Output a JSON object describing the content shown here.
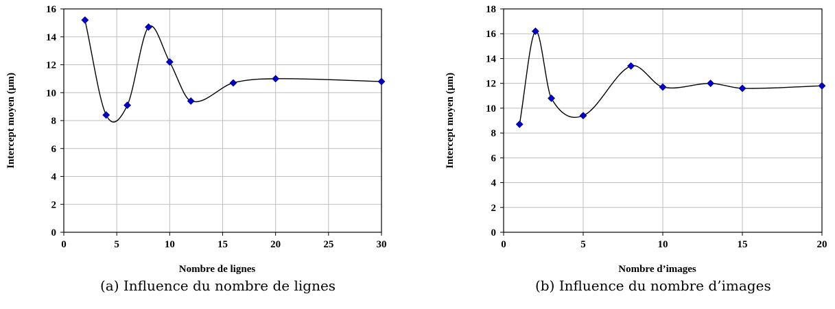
{
  "chart_data": [
    {
      "type": "scatter",
      "caption": "(a) Influence du nombre de lignes",
      "xlabel": "Nombre de lignes",
      "ylabel": "Intercept moyen (µm)",
      "xlim": [
        0,
        30
      ],
      "ylim": [
        0,
        16
      ],
      "xticks": [
        0,
        5,
        10,
        15,
        20,
        25,
        30
      ],
      "yticks": [
        0,
        2,
        4,
        6,
        8,
        10,
        12,
        14,
        16
      ],
      "grid": true,
      "smooth_curve": true,
      "marker": "diamond",
      "marker_color": "#0000c8",
      "x": [
        2,
        4,
        6,
        8,
        10,
        12,
        16,
        20,
        30
      ],
      "y": [
        15.2,
        8.4,
        9.1,
        14.7,
        12.2,
        9.4,
        10.7,
        11.0,
        10.8
      ]
    },
    {
      "type": "scatter",
      "caption": "(b) Influence du nombre d’images",
      "xlabel": "Nombre d’images",
      "ylabel": "Intercept moyen (µm)",
      "xlim": [
        0,
        20
      ],
      "ylim": [
        0,
        18
      ],
      "xticks": [
        0,
        5,
        10,
        15,
        20
      ],
      "yticks": [
        0,
        2,
        4,
        6,
        8,
        10,
        12,
        14,
        16,
        18
      ],
      "grid": true,
      "smooth_curve": true,
      "marker": "diamond",
      "marker_color": "#0000c8",
      "x": [
        1,
        2,
        3,
        5,
        8,
        10,
        13,
        15,
        20
      ],
      "y": [
        8.7,
        16.2,
        10.8,
        9.4,
        13.4,
        11.7,
        12.0,
        11.6,
        11.8
      ]
    }
  ]
}
